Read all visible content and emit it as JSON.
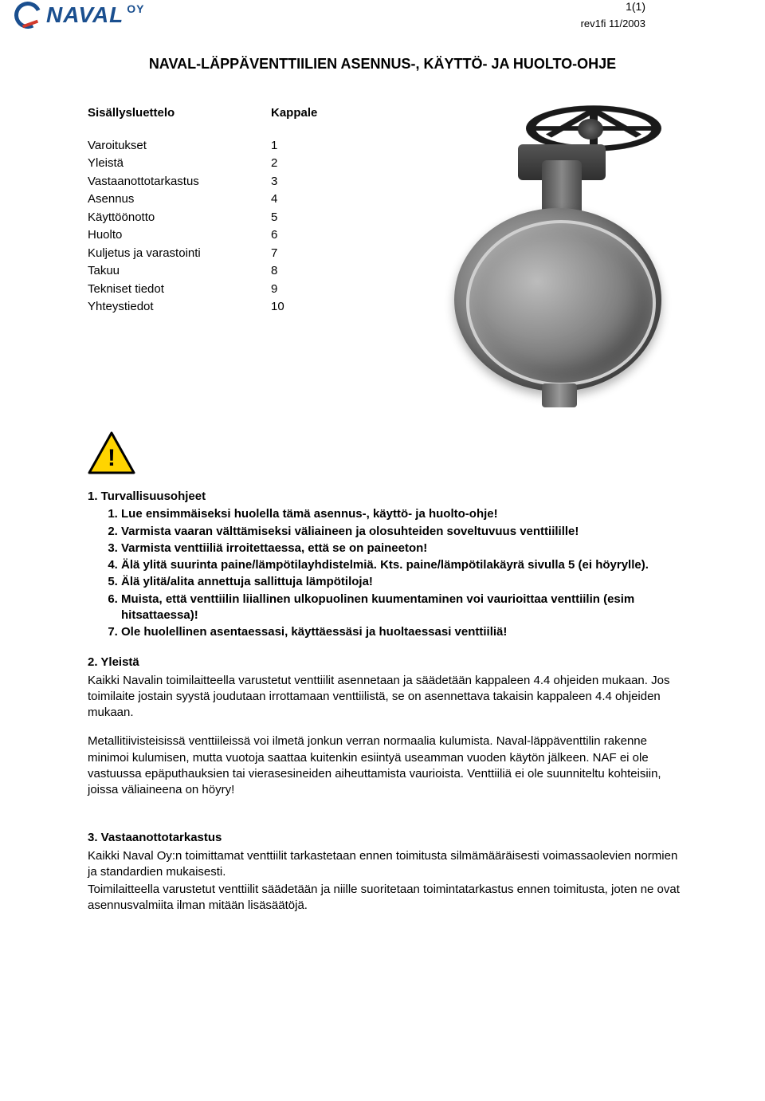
{
  "header": {
    "logo_main": "NAVAL",
    "logo_suffix": "OY",
    "page_number": "1(1)",
    "revision": "rev1fi 11/2003"
  },
  "title": "NAVAL-LÄPPÄVENTTIILIEN ASENNUS-, KÄYTTÖ- JA HUOLTO-OHJE",
  "toc": {
    "head_label": "Sisällysluettelo",
    "head_col": "Kappale",
    "rows": [
      {
        "label": "Varoitukset",
        "num": "1"
      },
      {
        "label": "Yleistä",
        "num": "2"
      },
      {
        "label": "Vastaanottotarkastus",
        "num": "3"
      },
      {
        "label": "Asennus",
        "num": "4"
      },
      {
        "label": "Käyttöönotto",
        "num": "5"
      },
      {
        "label": "Huolto",
        "num": "6"
      },
      {
        "label": "Kuljetus ja varastointi",
        "num": "7"
      },
      {
        "label": "Takuu",
        "num": "8"
      },
      {
        "label": "Tekniset tiedot",
        "num": "9"
      },
      {
        "label": "Yhteystiedot",
        "num": "10"
      }
    ]
  },
  "warning_icon": {
    "fill": "#ffd400",
    "stroke": "#000000",
    "mark": "!"
  },
  "section1": {
    "head": "1.   Turvallisuusohjeet",
    "items": [
      "Lue ensimmäiseksi huolella tämä asennus-, käyttö- ja huolto-ohje!",
      "Varmista vaaran välttämiseksi väliaineen ja olosuhteiden soveltuvuus venttiilille!",
      "Varmista venttiiliä irroitettaessa, että se on paineeton!",
      "Älä ylitä suurinta paine/lämpötilayhdistelmiä. Kts. paine/lämpötilakäyrä sivulla 5 (ei höyrylle).",
      "Älä ylitä/alita annettuja sallittuja lämpötiloja!",
      "Muista, että venttiilin liiallinen ulkopuolinen kuumentaminen voi vaurioittaa venttiilin (esim hitsattaessa)!",
      "Ole huolellinen asentaessasi, käyttäessäsi ja huoltaessasi venttiiliä!"
    ]
  },
  "section2": {
    "head": "2.   Yleistä",
    "p1": "Kaikki Navalin toimilaitteella varustetut venttiilit asennetaan ja säädetään kappaleen 4.4 ohjeiden mukaan. Jos toimilaite jostain syystä joudutaan irrottamaan venttiilistä, se on asennettava takaisin kappaleen 4.4 ohjeiden mukaan.",
    "p2": "Metallitiivisteisissä venttiileissä voi ilmetä jonkun verran normaalia kulumista. Naval-läppäventtilin rakenne minimoi kulumisen, mutta vuotoja saattaa kuitenkin esiintyä useamman vuoden käytön jälkeen. NAF ei ole vastuussa epäputhauksien tai vierasesineiden aiheuttamista vaurioista. Venttiiliä ei ole suunniteltu kohteisiin, joissa väliaineena on höyry!"
  },
  "section3": {
    "head": "3.   Vastaanottotarkastus",
    "p1": "Kaikki Naval  Oy:n toimittamat venttiilit tarkastetaan ennen toimitusta silmämääräisesti voimassaolevien normien ja standardien mukaisesti.",
    "p2": "Toimilaitteella varustetut venttiilit säädetään ja niille suoritetaan toimintatarkastus ennen toimitusta, joten ne ovat asennusvalmiita ilman mitään lisäsäätöjä."
  },
  "colors": {
    "logo_blue": "#1a4f8f",
    "logo_red": "#d33a2c",
    "text": "#000000",
    "background": "#ffffff"
  }
}
